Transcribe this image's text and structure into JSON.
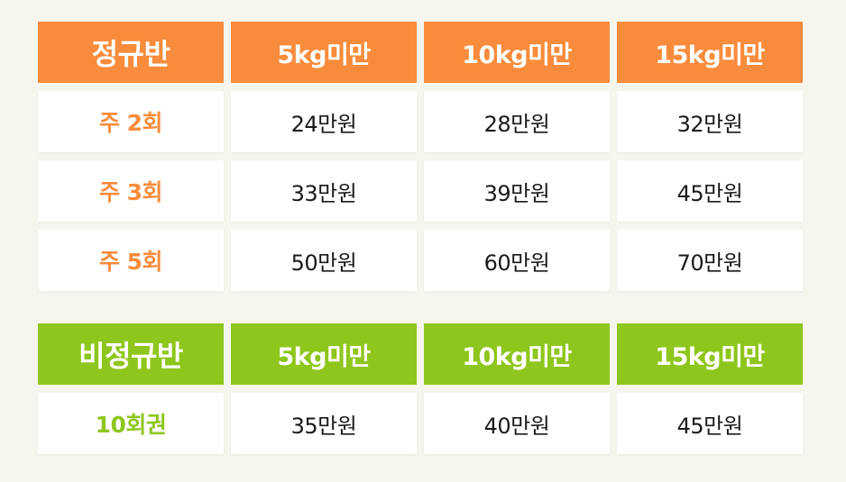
{
  "colors": {
    "regular_accent": "#f98c3c",
    "irregular_accent": "#8ec61d",
    "background": "#f6f5ee",
    "cell_background": "#ffffff",
    "text": "#1a1a1a"
  },
  "regular": {
    "title": "정규반",
    "columns": [
      "5kg미만",
      "10kg미만",
      "15kg미만"
    ],
    "rows": [
      {
        "label": "주 2회",
        "prices": [
          "24만원",
          "28만원",
          "32만원"
        ]
      },
      {
        "label": "주 3회",
        "prices": [
          "33만원",
          "39만원",
          "45만원"
        ]
      },
      {
        "label": "주 5회",
        "prices": [
          "50만원",
          "60만원",
          "70만원"
        ]
      }
    ]
  },
  "irregular": {
    "title": "비정규반",
    "columns": [
      "5kg미만",
      "10kg미만",
      "15kg미만"
    ],
    "rows": [
      {
        "label": "10회권",
        "prices": [
          "35만원",
          "40만원",
          "45만원"
        ]
      }
    ]
  }
}
